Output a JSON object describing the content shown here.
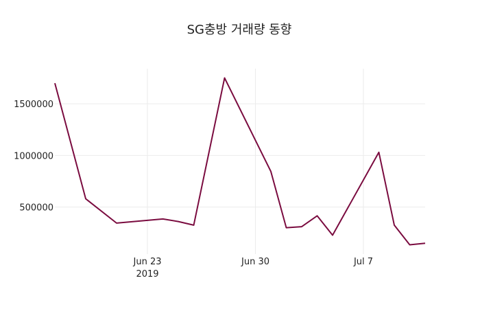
{
  "chart_data": {
    "type": "line",
    "title": "SG충방 거래량 동향",
    "xlabel": "",
    "ylabel": "",
    "x_ticks": [
      {
        "date": "2019-06-23",
        "label": "Jun 23",
        "sublabel": "2019"
      },
      {
        "date": "2019-06-30",
        "label": "Jun 30",
        "sublabel": ""
      },
      {
        "date": "2019-07-07",
        "label": "Jul 7",
        "sublabel": ""
      }
    ],
    "y_ticks": [
      {
        "value": 500000,
        "label": "500000"
      },
      {
        "value": 1000000,
        "label": "1000000"
      },
      {
        "value": 1500000,
        "label": "1500000"
      }
    ],
    "xlim": [
      "2019-06-17",
      "2019-07-11"
    ],
    "ylim": [
      45000,
      1840000
    ],
    "grid": true,
    "line_color": "#7a0b3f",
    "series": [
      {
        "x": [
          "2019-06-17",
          "2019-06-19",
          "2019-06-21",
          "2019-06-24",
          "2019-06-25",
          "2019-06-26",
          "2019-06-28",
          "2019-07-01",
          "2019-07-02",
          "2019-07-03",
          "2019-07-04",
          "2019-07-05",
          "2019-07-08",
          "2019-07-09",
          "2019-07-10",
          "2019-07-11"
        ],
        "values": [
          1700000,
          580000,
          345000,
          385000,
          360000,
          325000,
          1750000,
          845000,
          300000,
          310000,
          415000,
          228000,
          1030000,
          325000,
          135000,
          150000
        ]
      }
    ]
  }
}
